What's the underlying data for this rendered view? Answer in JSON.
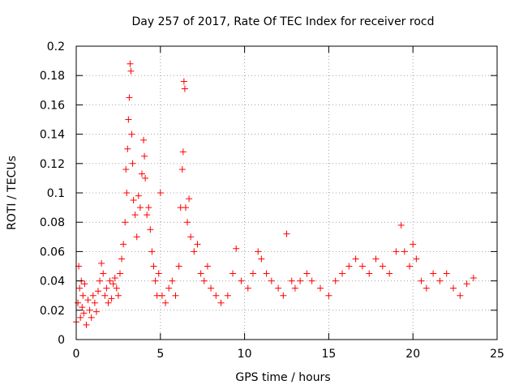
{
  "chart_data": {
    "type": "scatter",
    "title": "Day 257 of 2017, Rate Of TEC Index for receiver rocd",
    "xlabel": "GPS time / hours",
    "ylabel": "ROTI / TECUs",
    "xlim": [
      0,
      25
    ],
    "ylim": [
      0,
      0.2
    ],
    "xticks": [
      0,
      5,
      10,
      15,
      20,
      25
    ],
    "xtick_labels": [
      "0",
      "5",
      "10",
      "15",
      "20",
      "25"
    ],
    "yticks": [
      0,
      0.02,
      0.04,
      0.06,
      0.08,
      0.1,
      0.12,
      0.14,
      0.16,
      0.18,
      0.2
    ],
    "ytick_labels": [
      "0",
      "0.02",
      "0.04",
      "0.06",
      "0.08",
      "0.1",
      "0.12",
      "0.14",
      "0.16",
      "0.18",
      "0.2"
    ],
    "grid": true,
    "grid_style": "dotted",
    "marker": "plus",
    "marker_color": "#ff0000",
    "series": [
      {
        "points": [
          [
            0.0,
            0.012
          ],
          [
            0.1,
            0.025
          ],
          [
            0.15,
            0.05
          ],
          [
            0.2,
            0.035
          ],
          [
            0.25,
            0.015
          ],
          [
            0.3,
            0.04
          ],
          [
            0.35,
            0.022
          ],
          [
            0.4,
            0.03
          ],
          [
            0.45,
            0.018
          ],
          [
            0.5,
            0.038
          ],
          [
            0.6,
            0.01
          ],
          [
            0.7,
            0.027
          ],
          [
            0.8,
            0.02
          ],
          [
            0.9,
            0.015
          ],
          [
            1.0,
            0.03
          ],
          [
            1.1,
            0.025
          ],
          [
            1.2,
            0.019
          ],
          [
            1.3,
            0.033
          ],
          [
            1.4,
            0.04
          ],
          [
            1.5,
            0.052
          ],
          [
            1.6,
            0.045
          ],
          [
            1.7,
            0.03
          ],
          [
            1.8,
            0.035
          ],
          [
            1.9,
            0.025
          ],
          [
            2.0,
            0.04
          ],
          [
            2.1,
            0.028
          ],
          [
            2.2,
            0.038
          ],
          [
            2.3,
            0.042
          ],
          [
            2.4,
            0.035
          ],
          [
            2.5,
            0.03
          ],
          [
            2.6,
            0.045
          ],
          [
            2.7,
            0.055
          ],
          [
            2.8,
            0.065
          ],
          [
            2.9,
            0.08
          ],
          [
            2.95,
            0.116
          ],
          [
            3.0,
            0.1
          ],
          [
            3.05,
            0.13
          ],
          [
            3.1,
            0.15
          ],
          [
            3.15,
            0.165
          ],
          [
            3.2,
            0.188
          ],
          [
            3.25,
            0.183
          ],
          [
            3.3,
            0.14
          ],
          [
            3.35,
            0.12
          ],
          [
            3.4,
            0.095
          ],
          [
            3.5,
            0.085
          ],
          [
            3.6,
            0.07
          ],
          [
            3.7,
            0.098
          ],
          [
            3.8,
            0.09
          ],
          [
            3.9,
            0.113
          ],
          [
            4.0,
            0.136
          ],
          [
            4.05,
            0.125
          ],
          [
            4.1,
            0.11
          ],
          [
            4.2,
            0.085
          ],
          [
            4.3,
            0.09
          ],
          [
            4.4,
            0.075
          ],
          [
            4.5,
            0.06
          ],
          [
            4.6,
            0.05
          ],
          [
            4.7,
            0.04
          ],
          [
            4.8,
            0.03
          ],
          [
            4.9,
            0.045
          ],
          [
            5.0,
            0.1
          ],
          [
            5.1,
            0.03
          ],
          [
            5.3,
            0.025
          ],
          [
            5.5,
            0.035
          ],
          [
            5.7,
            0.04
          ],
          [
            5.9,
            0.03
          ],
          [
            6.1,
            0.05
          ],
          [
            6.2,
            0.09
          ],
          [
            6.3,
            0.116
          ],
          [
            6.35,
            0.128
          ],
          [
            6.4,
            0.176
          ],
          [
            6.45,
            0.171
          ],
          [
            6.5,
            0.09
          ],
          [
            6.6,
            0.08
          ],
          [
            6.7,
            0.096
          ],
          [
            6.8,
            0.07
          ],
          [
            7.0,
            0.06
          ],
          [
            7.2,
            0.065
          ],
          [
            7.4,
            0.045
          ],
          [
            7.6,
            0.04
          ],
          [
            7.8,
            0.05
          ],
          [
            8.0,
            0.035
          ],
          [
            8.3,
            0.03
          ],
          [
            8.6,
            0.025
          ],
          [
            9.0,
            0.03
          ],
          [
            9.3,
            0.045
          ],
          [
            9.5,
            0.062
          ],
          [
            9.8,
            0.04
          ],
          [
            10.2,
            0.035
          ],
          [
            10.5,
            0.045
          ],
          [
            10.8,
            0.06
          ],
          [
            11.0,
            0.055
          ],
          [
            11.3,
            0.045
          ],
          [
            11.6,
            0.04
          ],
          [
            12.0,
            0.035
          ],
          [
            12.3,
            0.03
          ],
          [
            12.5,
            0.072
          ],
          [
            12.8,
            0.04
          ],
          [
            13.0,
            0.035
          ],
          [
            13.3,
            0.04
          ],
          [
            13.7,
            0.045
          ],
          [
            14.0,
            0.04
          ],
          [
            14.5,
            0.035
          ],
          [
            15.0,
            0.03
          ],
          [
            15.4,
            0.04
          ],
          [
            15.8,
            0.045
          ],
          [
            16.2,
            0.05
          ],
          [
            16.6,
            0.055
          ],
          [
            17.0,
            0.05
          ],
          [
            17.4,
            0.045
          ],
          [
            17.8,
            0.055
          ],
          [
            18.2,
            0.05
          ],
          [
            18.6,
            0.045
          ],
          [
            19.0,
            0.06
          ],
          [
            19.3,
            0.078
          ],
          [
            19.5,
            0.06
          ],
          [
            19.8,
            0.05
          ],
          [
            20.0,
            0.065
          ],
          [
            20.2,
            0.055
          ],
          [
            20.5,
            0.04
          ],
          [
            20.8,
            0.035
          ],
          [
            21.2,
            0.045
          ],
          [
            21.6,
            0.04
          ],
          [
            22.0,
            0.045
          ],
          [
            22.4,
            0.035
          ],
          [
            22.8,
            0.03
          ],
          [
            23.2,
            0.038
          ],
          [
            23.6,
            0.042
          ]
        ]
      }
    ]
  }
}
